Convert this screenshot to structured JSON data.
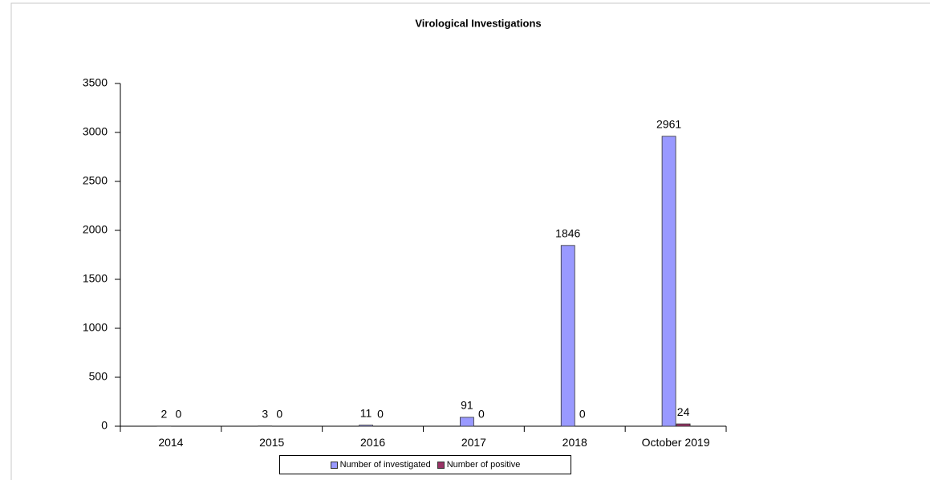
{
  "chart_data": {
    "type": "bar",
    "title": "Virological Investigations",
    "categories": [
      "2014",
      "2015",
      "2016",
      "2017",
      "2018",
      "October 2019"
    ],
    "series": [
      {
        "name": "Number of investigated",
        "color": "#9999ff",
        "values": [
          2,
          3,
          11,
          91,
          1846,
          2961
        ]
      },
      {
        "name": "Number of positive",
        "color": "#993366",
        "values": [
          0,
          0,
          0,
          0,
          0,
          24
        ]
      }
    ],
    "ylim": [
      0,
      3500
    ],
    "yticks": [
      0,
      500,
      1000,
      1500,
      2000,
      2500,
      3000,
      3500
    ],
    "grid": false,
    "legend": "bottom"
  }
}
